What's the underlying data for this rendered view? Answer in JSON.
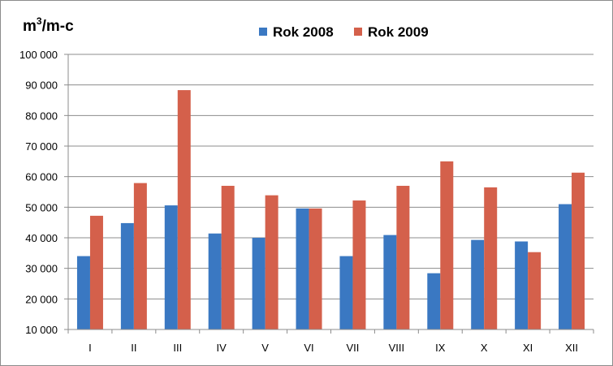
{
  "chart_data": {
    "type": "bar",
    "ylabel_base": "m",
    "ylabel_sup": "3",
    "ylabel_suffix": "/m-c",
    "categories": [
      "I",
      "II",
      "III",
      "IV",
      "V",
      "VI",
      "VII",
      "VIII",
      "IX",
      "X",
      "XI",
      "XII"
    ],
    "series": [
      {
        "name": "Rok 2008",
        "color": "#3a78c2",
        "values": [
          34000,
          44800,
          50600,
          41400,
          40000,
          49600,
          34000,
          40900,
          28400,
          39300,
          38800,
          51000
        ]
      },
      {
        "name": "Rok 2009",
        "color": "#d4604b",
        "values": [
          47200,
          57900,
          88300,
          57000,
          53900,
          49600,
          52200,
          57000,
          65000,
          56500,
          35300,
          61300
        ]
      }
    ],
    "ylim": [
      10000,
      100000
    ],
    "yticks": [
      10000,
      20000,
      30000,
      40000,
      50000,
      60000,
      70000,
      80000,
      90000,
      100000
    ],
    "ytick_labels": [
      "10 000",
      "20 000",
      "30 000",
      "40 000",
      "50 000",
      "60 000",
      "70 000",
      "80 000",
      "90 000",
      "100 000"
    ],
    "grid": true,
    "legend": "top-center"
  }
}
